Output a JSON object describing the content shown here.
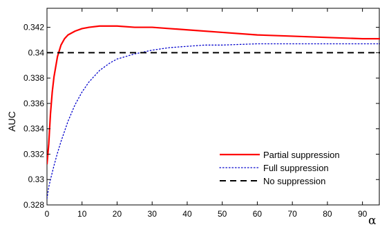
{
  "chart_data": {
    "type": "line",
    "title": "",
    "xlabel": "α",
    "ylabel": "AUC",
    "xlim": [
      0,
      95
    ],
    "ylim": [
      0.328,
      0.3435
    ],
    "grid": false,
    "legend_position": "lower-right",
    "x_ticks": [
      0,
      10,
      20,
      30,
      40,
      50,
      60,
      70,
      80,
      90
    ],
    "x_tick_labels": [
      "0",
      "10",
      "20",
      "30",
      "40",
      "50",
      "60",
      "70",
      "80",
      "90"
    ],
    "y_ticks": [
      0.328,
      0.33,
      0.332,
      0.334,
      0.336,
      0.338,
      0.34,
      0.342
    ],
    "y_tick_labels": [
      "0.328",
      "0.33",
      "0.332",
      "0.334",
      "0.336",
      "0.338",
      "0.34",
      "0.342"
    ],
    "series": [
      {
        "name": "Partial suppression",
        "color": "#ff0000",
        "style": "solid",
        "x": [
          0,
          0.5,
          1,
          1.5,
          2,
          3,
          4,
          5,
          6,
          8,
          10,
          12,
          15,
          18,
          20,
          25,
          30,
          35,
          40,
          50,
          60,
          70,
          80,
          90,
          95
        ],
        "y": [
          0.3312,
          0.3328,
          0.3352,
          0.3369,
          0.3381,
          0.3397,
          0.3406,
          0.3411,
          0.3414,
          0.3417,
          0.3419,
          0.342,
          0.3421,
          0.3421,
          0.3421,
          0.342,
          0.342,
          0.3419,
          0.3418,
          0.3416,
          0.3414,
          0.3413,
          0.3412,
          0.3411,
          0.3411
        ]
      },
      {
        "name": "Full suppression",
        "color": "#0000cc",
        "style": "dotted",
        "x": [
          0,
          0.5,
          1,
          2,
          3,
          4,
          5,
          6,
          8,
          10,
          12,
          15,
          18,
          20,
          25,
          30,
          35,
          40,
          45,
          50,
          60,
          70,
          80,
          90,
          95
        ],
        "y": [
          0.3285,
          0.3294,
          0.33,
          0.3311,
          0.3321,
          0.333,
          0.3338,
          0.3346,
          0.3359,
          0.3369,
          0.3377,
          0.3386,
          0.3392,
          0.3395,
          0.3399,
          0.3402,
          0.3404,
          0.3405,
          0.3406,
          0.3406,
          0.3407,
          0.3407,
          0.3407,
          0.3407,
          0.3407
        ]
      },
      {
        "name": "No suppression",
        "color": "#000000",
        "style": "dashed",
        "x": [
          0,
          95
        ],
        "y": [
          0.34,
          0.34
        ]
      }
    ]
  }
}
